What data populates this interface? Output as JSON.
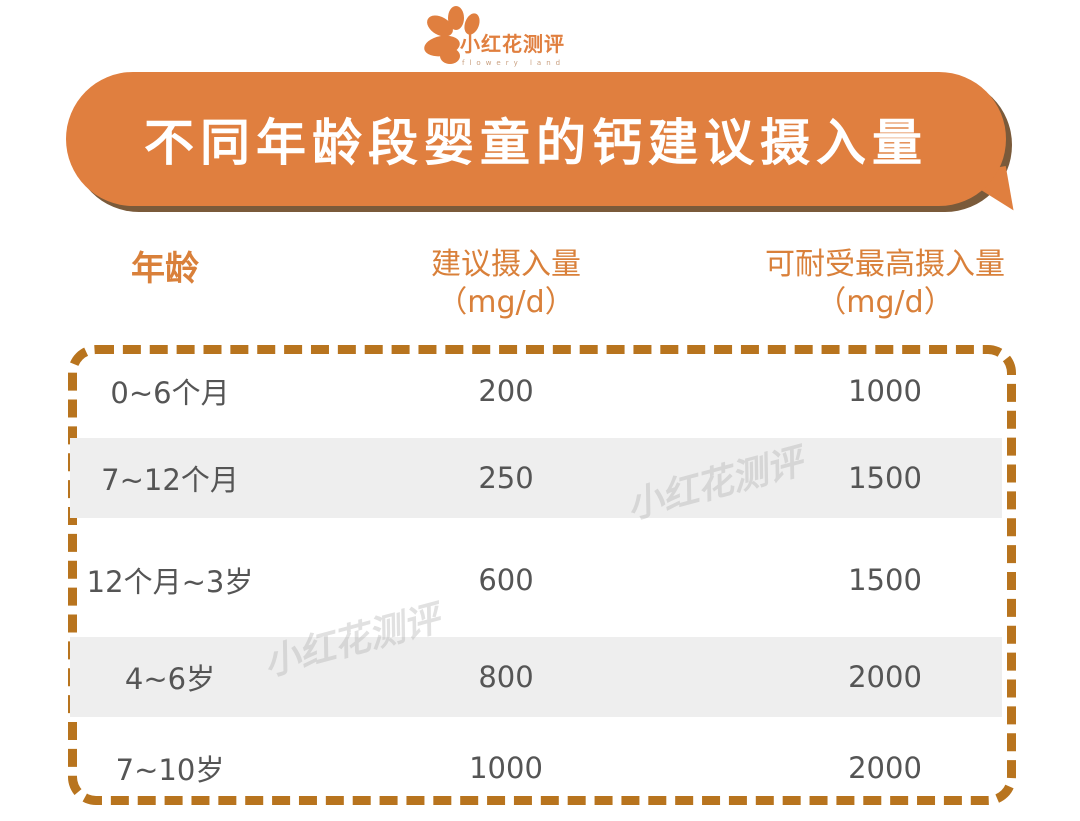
{
  "logo": {
    "name": "小红花测评",
    "subtitle": "flowery land",
    "color": "#E07F3F"
  },
  "title": "不同年龄段婴童的钙建议摄入量",
  "headers": {
    "age": "年龄",
    "recommended": "建议摄入量",
    "recommended_unit": "（mg/d）",
    "max": "可耐受最高摄入量",
    "max_unit": "（mg/d）"
  },
  "rows": [
    {
      "age": "0~6个月",
      "recommended": "200",
      "max": "1000"
    },
    {
      "age": "7~12个月",
      "recommended": "250",
      "max": "1500"
    },
    {
      "age": "12个月~3岁",
      "recommended": "600",
      "max": "1500"
    },
    {
      "age": "4~6岁",
      "recommended": "800",
      "max": "2000"
    },
    {
      "age": "7~10岁",
      "recommended": "1000",
      "max": "2000"
    }
  ],
  "watermark": "小红花测评",
  "colors": {
    "accent": "#E07F3F",
    "border": "#B8741E",
    "header": "#D9803A"
  }
}
